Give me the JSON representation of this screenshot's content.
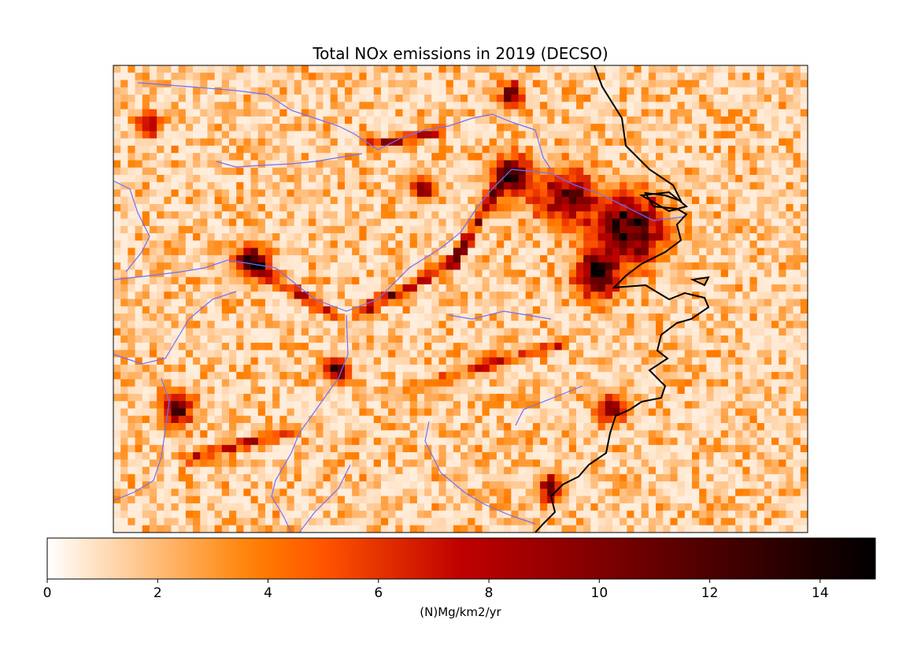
{
  "chart_data": {
    "type": "heatmap",
    "title": "Total NOx emissions in 2019 (DECSO)",
    "colormap": "gist_heat_r",
    "colorbar": {
      "label": "(N)Mg/km2/yr",
      "range": [
        0,
        15
      ],
      "ticks": [
        0,
        2,
        4,
        6,
        8,
        10,
        12,
        14
      ],
      "tick_labels": [
        "0",
        "2",
        "4",
        "6",
        "8",
        "10",
        "12",
        "14"
      ],
      "orientation": "horizontal"
    },
    "grid": {
      "cols": 96,
      "rows": 64,
      "background_range": [
        0.5,
        4
      ]
    },
    "hotspots": [
      {
        "col": 71.4,
        "row": 22.3,
        "value": 15,
        "spread": 3.0
      },
      {
        "col": 67,
        "row": 28.8,
        "value": 14,
        "spread": 2.0
      },
      {
        "col": 55,
        "row": 15.3,
        "value": 14,
        "spread": 1.8
      },
      {
        "col": 62.7,
        "row": 18,
        "value": 12,
        "spread": 2.5
      },
      {
        "col": 19,
        "row": 27,
        "value": 14,
        "spread": 1.5
      },
      {
        "col": 8.8,
        "row": 47,
        "value": 13,
        "spread": 1.3
      },
      {
        "col": 31,
        "row": 41.8,
        "value": 14,
        "spread": 1.0
      },
      {
        "col": 69,
        "row": 47,
        "value": 10,
        "spread": 1.3
      },
      {
        "col": 43,
        "row": 17,
        "value": 12,
        "spread": 1.0
      },
      {
        "col": 55,
        "row": 4,
        "value": 12,
        "spread": 1.0
      },
      {
        "col": 60.5,
        "row": 58,
        "value": 11,
        "spread": 1.2
      },
      {
        "col": 5,
        "row": 8.3,
        "value": 8,
        "spread": 1.0
      }
    ],
    "corridors": [
      {
        "from": [
          34,
          34
        ],
        "to": [
          47,
          27
        ],
        "value": 8
      },
      {
        "from": [
          47,
          27
        ],
        "to": [
          53,
          17
        ],
        "value": 9
      },
      {
        "from": [
          36,
          11
        ],
        "to": [
          45,
          9
        ],
        "value": 9
      },
      {
        "from": [
          20,
          28
        ],
        "to": [
          30,
          34
        ],
        "value": 7
      },
      {
        "from": [
          50,
          42
        ],
        "to": [
          62,
          38
        ],
        "value": 5
      },
      {
        "from": [
          40,
          45
        ],
        "to": [
          53,
          40
        ],
        "value": 5
      },
      {
        "from": [
          10,
          54
        ],
        "to": [
          25,
          50
        ],
        "value": 6
      }
    ]
  }
}
